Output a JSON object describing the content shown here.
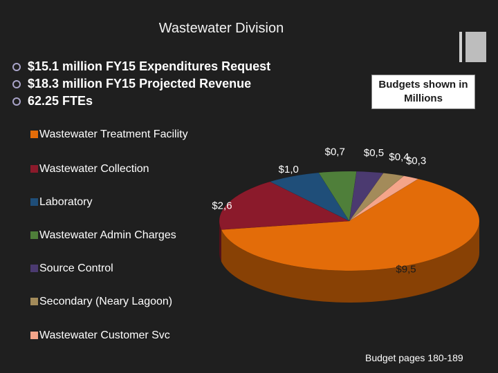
{
  "slide": {
    "title": "Wastewater Division",
    "bullets": [
      "$15.1 million FY15 Expenditures Request",
      "$18.3 million FY15 Projected Revenue",
      "62.25 FTEs"
    ],
    "callout": "Budgets shown in Millions",
    "footer": "Budget pages 180-189"
  },
  "chart_data": {
    "type": "pie",
    "style": "3d",
    "categories": [
      "Wastewater Treatment Facility",
      "Wastewater Collection",
      "Laboratory",
      "Wastewater Admin Charges",
      "Source Control",
      "Secondary (Neary Lagoon)",
      "Wastewater Customer Svc"
    ],
    "values": [
      9.5,
      2.6,
      1.0,
      0.7,
      0.5,
      0.4,
      0.3
    ],
    "data_labels": [
      "$9,5",
      "$2,6",
      "$1,0",
      "$0,7",
      "$0,5",
      "$0,4",
      "$0,3"
    ],
    "colors": [
      "#e36c09",
      "#8b1a2b",
      "#1f4e79",
      "#4f7f3a",
      "#4b3a70",
      "#a38b5a",
      "#f4a58a"
    ],
    "legend_position": "left"
  }
}
